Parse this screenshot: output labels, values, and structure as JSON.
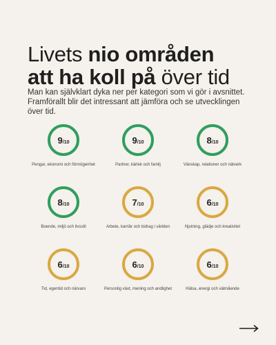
{
  "header": {
    "title_part1": "Livets ",
    "title_bold1": "nio områden",
    "title_bold2": "att ha koll på",
    "title_part2": " över tid",
    "subtitle": "Man kan självklart dyka ner per kategori som vi gör i avsnittet. Framförallt blir det intressant att jämföra och se utvecklingen över tid."
  },
  "colors": {
    "green": "#2f9e5e",
    "yellow": "#d9a842",
    "background": "#f5f1ec"
  },
  "areas": [
    {
      "score": "9",
      "den": "/10",
      "label": "Pengar, ekonomi och förmögenhet",
      "color": "green"
    },
    {
      "score": "9",
      "den": "/10",
      "label": "Partner, kärlek och familj",
      "color": "green"
    },
    {
      "score": "8",
      "den": "/10",
      "label": "Vänskap, relationer och nätverk",
      "color": "green"
    },
    {
      "score": "8",
      "den": "/10",
      "label": "Boende, miljö och livsstil",
      "color": "green"
    },
    {
      "score": "7",
      "den": "/10",
      "label": "Arbete, karriär och bidrag i världen",
      "color": "yellow"
    },
    {
      "score": "6",
      "den": "/10",
      "label": "Njutning, glädje och kreativitet",
      "color": "yellow"
    },
    {
      "score": "6",
      "den": "/10",
      "label": "Tid, egentid och närvaro",
      "color": "yellow"
    },
    {
      "score": "6",
      "den": "/10",
      "label": "Personlig växt, mening och andlighet",
      "color": "yellow"
    },
    {
      "score": "6",
      "den": "/10",
      "label": "Hälsa, energi och välmående",
      "color": "yellow"
    }
  ],
  "nav": {
    "next_icon": "arrow-right-icon"
  }
}
